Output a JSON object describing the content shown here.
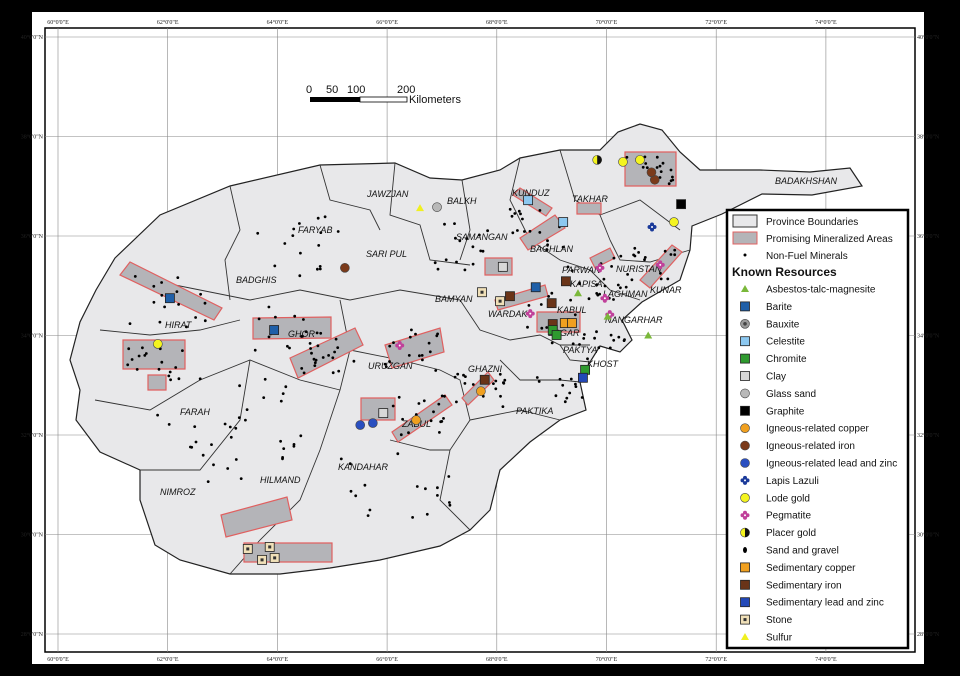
{
  "map": {
    "graticule": {
      "longitudes": [
        60,
        62,
        64,
        66,
        68,
        70,
        72,
        74
      ],
      "latitudes": [
        40,
        38,
        36,
        34,
        32,
        30,
        28
      ],
      "lon_labels": [
        "60°0'0\"E",
        "62°0'0\"E",
        "64°0'0\"E",
        "66°0'0\"E",
        "68°0'0\"E",
        "70°0'0\"E",
        "72°0'0\"E",
        "74°0'0\"E"
      ],
      "lat_labels": [
        "40°0'0\"N",
        "38°0'0\"N",
        "36°0'0\"N",
        "34°0'0\"N",
        "32°0'0\"N",
        "30°0'0\"N",
        "28°0'0\"N"
      ]
    },
    "scale_bar": {
      "labels": [
        "0",
        "50",
        "100",
        "200"
      ],
      "unit": "Kilometers"
    },
    "provinces": [
      "JAWZJAN",
      "BALKH",
      "KUNDUZ",
      "TAKHAR",
      "BADAKHSHAN",
      "FARYAB",
      "SAMANGAN",
      "BAGHLAN",
      "SARI PUL",
      "BADGHIS",
      "HIRAT",
      "GHOR",
      "BAMYAN",
      "PARWAN",
      "KAPISA",
      "NURISTAN",
      "KUNAR",
      "LAGHMAN",
      "WARDAK",
      "KABUL",
      "LOGAR",
      "NANGARHAR",
      "PAKTYA",
      "KHOST",
      "GHAZNI",
      "PAKTIKA",
      "URUZGAN",
      "ZABUL",
      "KANDAHAR",
      "HILMAND",
      "NIMROZ",
      "FARAH"
    ],
    "colors": {
      "province_fill": "#e8e8ea",
      "mineral_area_fill": "#b4b4b8",
      "mineral_area_stroke": "#e06060",
      "background": "#ffffff",
      "frame": "#000000"
    },
    "resources": [
      {
        "type": "barite",
        "lon": 62.04,
        "lat": 34.75
      },
      {
        "type": "barite",
        "lon": 63.94,
        "lat": 34.11
      },
      {
        "type": "barite",
        "lon": 68.71,
        "lat": 34.97
      },
      {
        "type": "lode-gold",
        "lon": 61.82,
        "lat": 33.83
      },
      {
        "type": "lode-gold",
        "lon": 70.3,
        "lat": 37.49
      },
      {
        "type": "lode-gold",
        "lon": 70.61,
        "lat": 37.53
      },
      {
        "type": "lode-gold",
        "lon": 71.23,
        "lat": 36.28
      },
      {
        "type": "placer-gold",
        "lon": 69.83,
        "lat": 37.53
      },
      {
        "type": "igneous-iron",
        "lon": 65.23,
        "lat": 35.36
      },
      {
        "type": "igneous-iron",
        "lon": 70.88,
        "lat": 37.13
      },
      {
        "type": "igneous-iron",
        "lon": 70.82,
        "lat": 37.28
      },
      {
        "type": "sulfur",
        "lon": 66.6,
        "lat": 36.56
      },
      {
        "type": "glass-sand",
        "lon": 66.91,
        "lat": 36.58
      },
      {
        "type": "celestite",
        "lon": 68.57,
        "lat": 36.72
      },
      {
        "type": "celestite",
        "lon": 69.21,
        "lat": 36.28
      },
      {
        "type": "graphite",
        "lon": 71.36,
        "lat": 36.64
      },
      {
        "type": "lapis-lazuli",
        "lon": 70.83,
        "lat": 36.18
      },
      {
        "type": "clay",
        "lon": 68.11,
        "lat": 35.38
      },
      {
        "type": "clay",
        "lon": 65.93,
        "lat": 32.44
      },
      {
        "type": "stone",
        "lon": 67.73,
        "lat": 34.87
      },
      {
        "type": "stone",
        "lon": 68.06,
        "lat": 34.69
      },
      {
        "type": "stone",
        "lon": 63.46,
        "lat": 29.71
      },
      {
        "type": "stone",
        "lon": 63.86,
        "lat": 29.75
      },
      {
        "type": "stone",
        "lon": 63.95,
        "lat": 29.53
      },
      {
        "type": "stone",
        "lon": 63.72,
        "lat": 29.49
      },
      {
        "type": "sedimentary-iron",
        "lon": 69.26,
        "lat": 35.09
      },
      {
        "type": "sedimentary-iron",
        "lon": 68.24,
        "lat": 34.79
      },
      {
        "type": "sedimentary-iron",
        "lon": 69.0,
        "lat": 34.65
      },
      {
        "type": "sedimentary-iron",
        "lon": 69.02,
        "lat": 34.23
      },
      {
        "type": "sedimentary-iron",
        "lon": 67.78,
        "lat": 33.11
      },
      {
        "type": "sedimentary-copper",
        "lon": 69.24,
        "lat": 34.25
      },
      {
        "type": "sedimentary-copper",
        "lon": 69.37,
        "lat": 34.25
      },
      {
        "type": "chromite",
        "lon": 69.02,
        "lat": 34.11
      },
      {
        "type": "chromite",
        "lon": 69.09,
        "lat": 34.01
      },
      {
        "type": "chromite",
        "lon": 69.61,
        "lat": 33.31
      },
      {
        "type": "sedimentary-lead-zinc",
        "lon": 69.57,
        "lat": 33.15
      },
      {
        "type": "igneous-copper",
        "lon": 67.71,
        "lat": 32.88
      },
      {
        "type": "igneous-copper",
        "lon": 66.53,
        "lat": 32.3
      },
      {
        "type": "igneous-lead-zinc",
        "lon": 65.51,
        "lat": 32.2
      },
      {
        "type": "igneous-lead-zinc",
        "lon": 65.74,
        "lat": 32.24
      },
      {
        "type": "pegmatite",
        "lon": 68.61,
        "lat": 34.44
      },
      {
        "type": "pegmatite",
        "lon": 69.88,
        "lat": 35.36
      },
      {
        "type": "pegmatite",
        "lon": 70.98,
        "lat": 35.42
      },
      {
        "type": "pegmatite",
        "lon": 70.06,
        "lat": 34.42
      },
      {
        "type": "pegmatite",
        "lon": 66.23,
        "lat": 33.8
      },
      {
        "type": "pegmatite",
        "lon": 69.97,
        "lat": 34.75
      },
      {
        "type": "asbestos",
        "lon": 69.48,
        "lat": 34.85
      },
      {
        "type": "asbestos",
        "lon": 70.02,
        "lat": 34.38
      },
      {
        "type": "asbestos",
        "lon": 70.76,
        "lat": 34.0
      }
    ]
  },
  "legend": {
    "items": [
      {
        "symbol": "province",
        "label": "Province Boundaries"
      },
      {
        "symbol": "area",
        "label": "Promising Mineralized Areas"
      },
      {
        "symbol": "dot",
        "label": "Non-Fuel Minerals"
      }
    ],
    "heading": "Known Resources",
    "resources": [
      {
        "symbol": "asbestos",
        "label": "Asbestos-talc-magnesite"
      },
      {
        "symbol": "barite",
        "label": "Barite"
      },
      {
        "symbol": "bauxite",
        "label": "Bauxite"
      },
      {
        "symbol": "celestite",
        "label": "Celestite"
      },
      {
        "symbol": "chromite",
        "label": "Chromite"
      },
      {
        "symbol": "clay",
        "label": "Clay"
      },
      {
        "symbol": "glass-sand",
        "label": "Glass sand"
      },
      {
        "symbol": "graphite",
        "label": "Graphite"
      },
      {
        "symbol": "igneous-copper",
        "label": "Igneous-related copper"
      },
      {
        "symbol": "igneous-iron",
        "label": "Igneous-related iron"
      },
      {
        "symbol": "igneous-lead-zinc",
        "label": "Igneous-related lead and zinc"
      },
      {
        "symbol": "lapis-lazuli",
        "label": "Lapis Lazuli"
      },
      {
        "symbol": "lode-gold",
        "label": "Lode gold"
      },
      {
        "symbol": "pegmatite",
        "label": "Pegmatite"
      },
      {
        "symbol": "placer-gold",
        "label": "Placer gold"
      },
      {
        "symbol": "sand-gravel",
        "label": "Sand and gravel"
      },
      {
        "symbol": "sedimentary-copper",
        "label": "Sedimentary copper"
      },
      {
        "symbol": "sedimentary-iron",
        "label": "Sedimentary iron"
      },
      {
        "symbol": "sedimentary-lead-zinc",
        "label": "Sedimentary lead and zinc"
      },
      {
        "symbol": "stone",
        "label": "Stone"
      },
      {
        "symbol": "sulfur",
        "label": "Sulfur"
      }
    ]
  }
}
